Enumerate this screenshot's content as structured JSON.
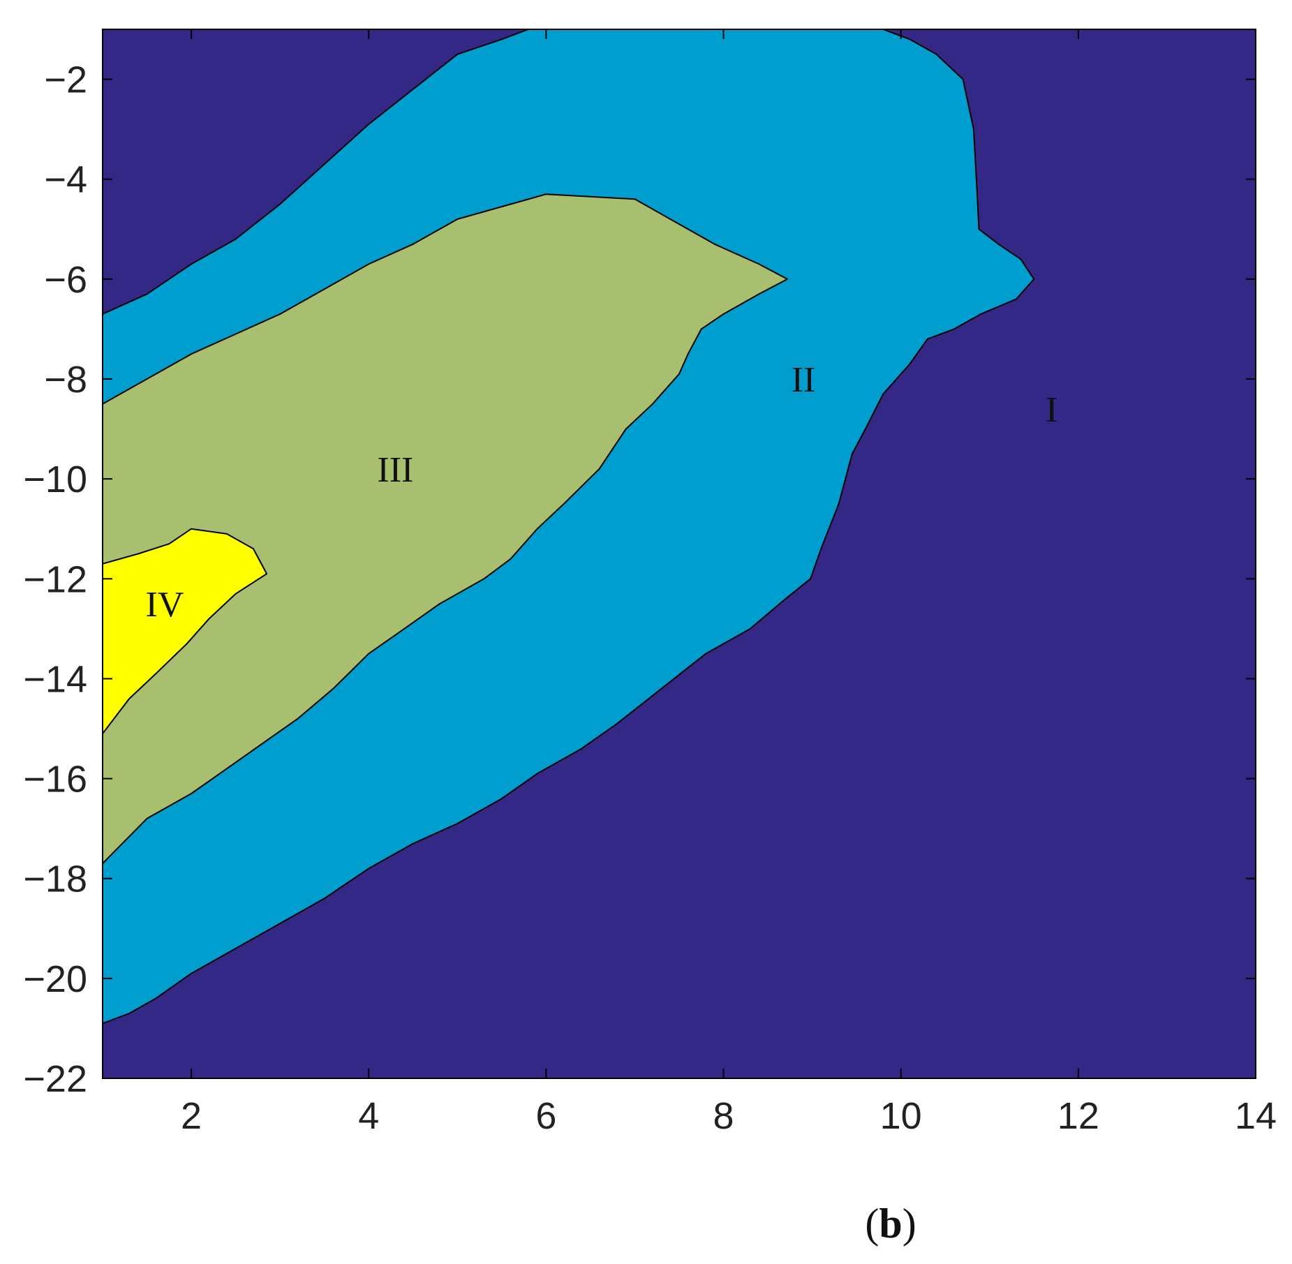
{
  "chart_data": {
    "type": "contour",
    "xlim": [
      1,
      14
    ],
    "ylim": [
      -22,
      -1
    ],
    "xticks": [
      2,
      4,
      6,
      8,
      10,
      12,
      14
    ],
    "yticks": [
      -22,
      -20,
      -18,
      -16,
      -14,
      -12,
      -10,
      -8,
      -6,
      -4,
      -2
    ],
    "xtick_labels": [
      "2",
      "4",
      "6",
      "8",
      "10",
      "12",
      "14"
    ],
    "ytick_labels": [
      "−22",
      "−20",
      "−18",
      "−16",
      "−14",
      "−12",
      "−10",
      "−8",
      "−6",
      "−4",
      "−2"
    ],
    "grid": false,
    "colors": {
      "I": "#332885",
      "II": "#009ECF",
      "III": "#A7BF6F",
      "IV": "#FFFF00",
      "line": "#000000"
    },
    "regions": [
      {
        "name": "I",
        "label": "I",
        "label_at": [
          11.7,
          -8.6
        ],
        "boundary": [
          [
            1,
            -1
          ],
          [
            14,
            -1
          ],
          [
            14,
            -22
          ],
          [
            1,
            -22
          ]
        ]
      },
      {
        "name": "II",
        "label": "II",
        "label_at": [
          8.9,
          -8.0
        ],
        "boundary": [
          [
            1,
            -6.7
          ],
          [
            1.5,
            -6.3
          ],
          [
            2,
            -5.7
          ],
          [
            2.5,
            -5.2
          ],
          [
            3,
            -4.5
          ],
          [
            3.5,
            -3.7
          ],
          [
            4,
            -2.9
          ],
          [
            4.5,
            -2.2
          ],
          [
            5,
            -1.5
          ],
          [
            5.5,
            -1.2
          ],
          [
            5.8,
            -1.0
          ],
          [
            9.8,
            -1.0
          ],
          [
            10.1,
            -1.2
          ],
          [
            10.4,
            -1.5
          ],
          [
            10.7,
            -2.0
          ],
          [
            10.82,
            -3.0
          ],
          [
            10.86,
            -4.3
          ],
          [
            10.88,
            -5.0
          ],
          [
            11.1,
            -5.3
          ],
          [
            11.35,
            -5.6
          ],
          [
            11.5,
            -6.0
          ],
          [
            11.3,
            -6.4
          ],
          [
            10.9,
            -6.7
          ],
          [
            10.6,
            -7.0
          ],
          [
            10.3,
            -7.2
          ],
          [
            10.1,
            -7.7
          ],
          [
            9.8,
            -8.3
          ],
          [
            9.6,
            -9.0
          ],
          [
            9.45,
            -9.5
          ],
          [
            9.3,
            -10.5
          ],
          [
            9.1,
            -11.4
          ],
          [
            8.98,
            -12.0
          ],
          [
            8.7,
            -12.4
          ],
          [
            8.3,
            -13.0
          ],
          [
            7.8,
            -13.5
          ],
          [
            7.3,
            -14.2
          ],
          [
            6.8,
            -14.9
          ],
          [
            6.4,
            -15.4
          ],
          [
            5.9,
            -15.9
          ],
          [
            5.5,
            -16.4
          ],
          [
            5.0,
            -16.9
          ],
          [
            4.5,
            -17.3
          ],
          [
            4.0,
            -17.8
          ],
          [
            3.5,
            -18.4
          ],
          [
            3.0,
            -18.9
          ],
          [
            2.5,
            -19.4
          ],
          [
            2.0,
            -19.9
          ],
          [
            1.6,
            -20.4
          ],
          [
            1.3,
            -20.7
          ],
          [
            1,
            -20.9
          ]
        ]
      },
      {
        "name": "III",
        "label": "III",
        "label_at": [
          4.3,
          -9.8
        ],
        "boundary": [
          [
            1,
            -8.5
          ],
          [
            1.5,
            -8.0
          ],
          [
            2,
            -7.5
          ],
          [
            2.5,
            -7.1
          ],
          [
            3,
            -6.7
          ],
          [
            3.5,
            -6.2
          ],
          [
            4,
            -5.7
          ],
          [
            4.5,
            -5.3
          ],
          [
            5,
            -4.8
          ],
          [
            5.5,
            -4.55
          ],
          [
            6,
            -4.3
          ],
          [
            6.5,
            -4.35
          ],
          [
            7,
            -4.4
          ],
          [
            7.5,
            -4.9
          ],
          [
            7.9,
            -5.3
          ],
          [
            8.4,
            -5.7
          ],
          [
            8.72,
            -6.0
          ],
          [
            8.4,
            -6.3
          ],
          [
            8.0,
            -6.7
          ],
          [
            7.75,
            -7.0
          ],
          [
            7.6,
            -7.5
          ],
          [
            7.5,
            -7.9
          ],
          [
            7.2,
            -8.5
          ],
          [
            6.9,
            -9.0
          ],
          [
            6.6,
            -9.8
          ],
          [
            6.2,
            -10.5
          ],
          [
            5.9,
            -11.0
          ],
          [
            5.6,
            -11.6
          ],
          [
            5.3,
            -12.0
          ],
          [
            4.8,
            -12.5
          ],
          [
            4.4,
            -13.0
          ],
          [
            4.0,
            -13.5
          ],
          [
            3.6,
            -14.2
          ],
          [
            3.2,
            -14.8
          ],
          [
            2.8,
            -15.3
          ],
          [
            2.4,
            -15.8
          ],
          [
            2.0,
            -16.3
          ],
          [
            1.5,
            -16.8
          ],
          [
            1,
            -17.7
          ]
        ]
      },
      {
        "name": "IV",
        "label": "IV",
        "label_at": [
          1.7,
          -12.5
        ],
        "boundary": [
          [
            1,
            -11.7
          ],
          [
            1.4,
            -11.5
          ],
          [
            1.75,
            -11.3
          ],
          [
            2.0,
            -11.0
          ],
          [
            2.4,
            -11.1
          ],
          [
            2.7,
            -11.4
          ],
          [
            2.85,
            -11.9
          ],
          [
            2.5,
            -12.3
          ],
          [
            2.2,
            -12.8
          ],
          [
            1.95,
            -13.3
          ],
          [
            1.6,
            -13.9
          ],
          [
            1.3,
            -14.4
          ],
          [
            1,
            -15.1
          ]
        ]
      }
    ]
  },
  "panel_label": {
    "open": "(",
    "letter": "b",
    "close": ")"
  }
}
